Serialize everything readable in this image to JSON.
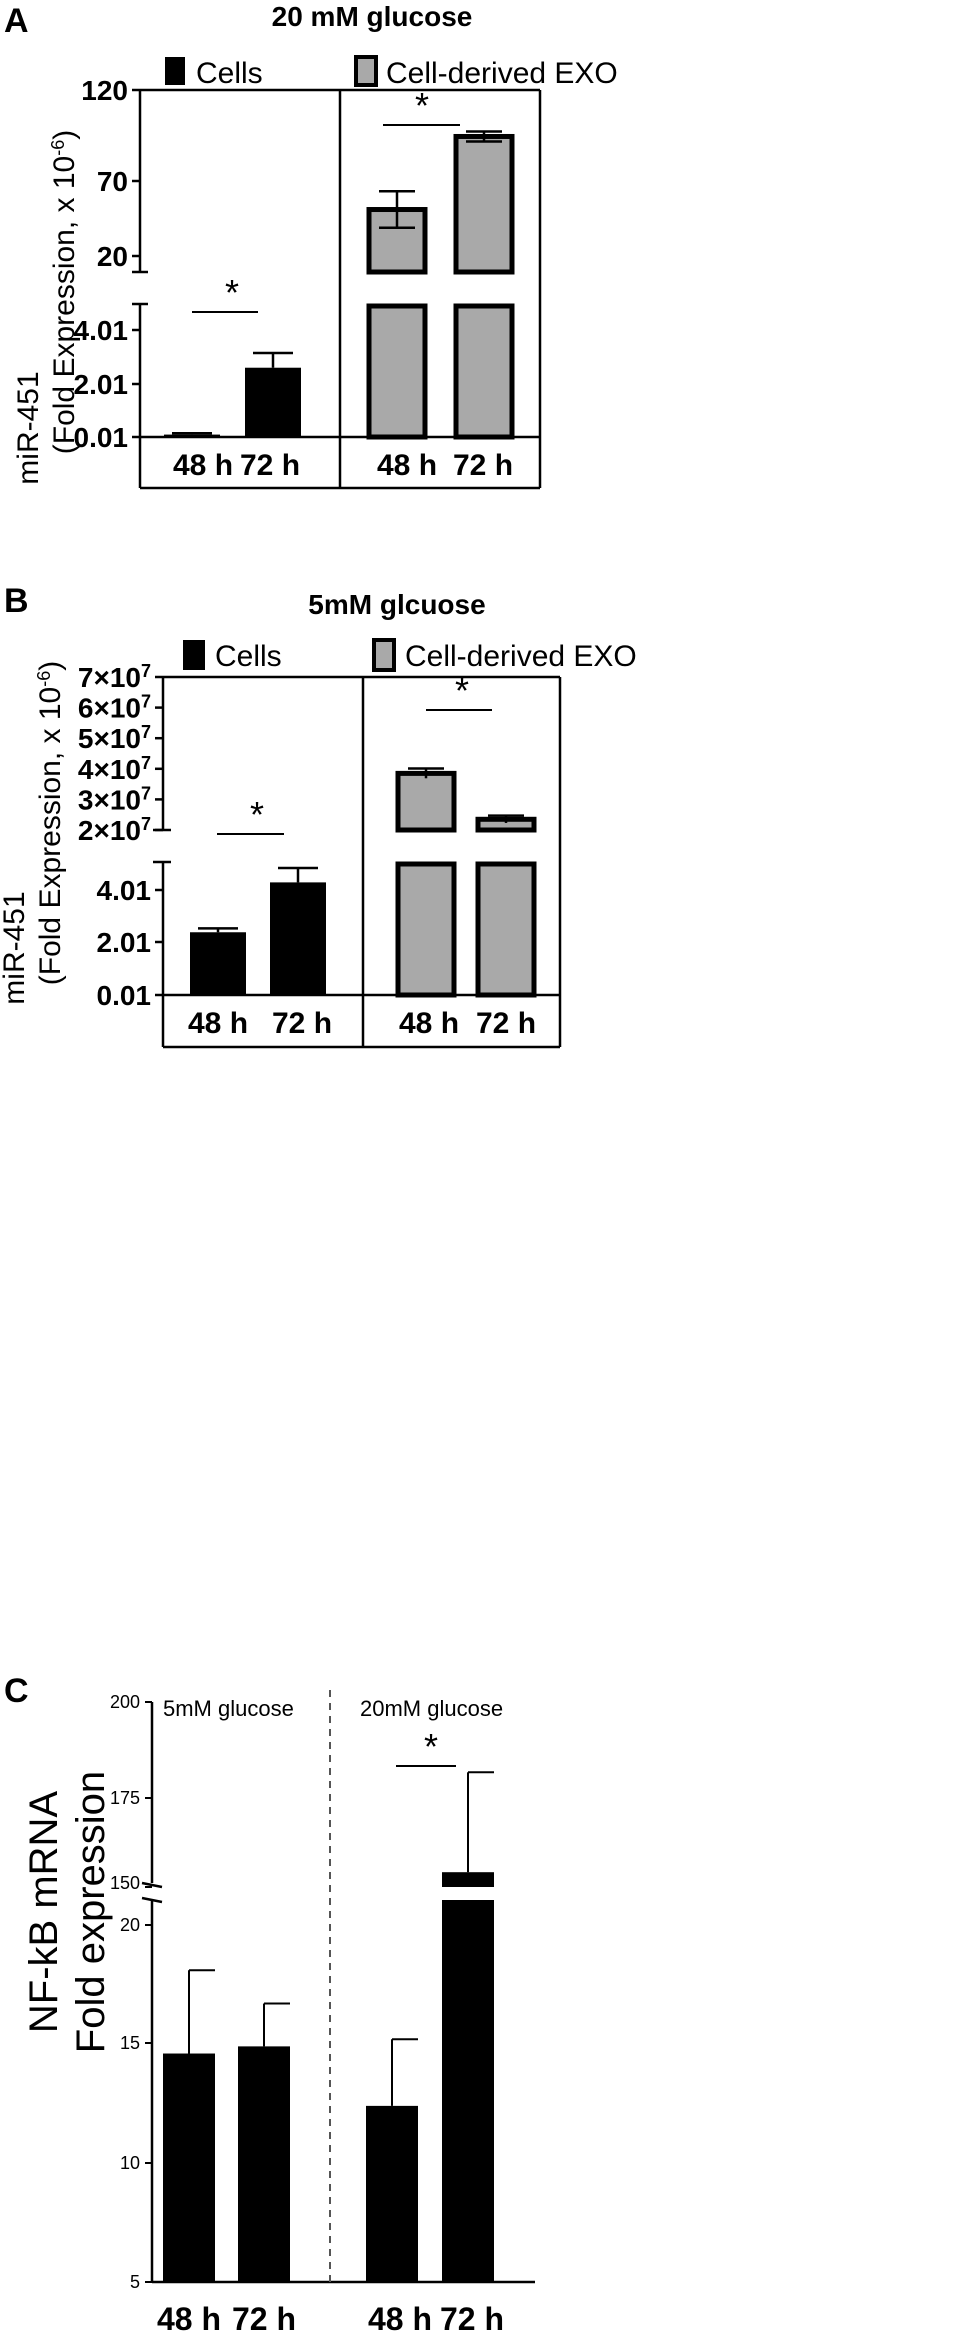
{
  "chart_data": [
    {
      "panel": "A",
      "type": "bar",
      "title": "20 mM glucose",
      "ylabel_line1": "miR-451",
      "ylabel_line2": "(Fold Expression, x 10",
      "ylabel_exp": "-6",
      "legend": [
        "Cells",
        "Cell-derived EXO"
      ],
      "categories": [
        "48 h",
        "72 h"
      ],
      "significance_marker": "*",
      "ytick_labels_lower": [
        "0.01",
        "2.01",
        "4.01"
      ],
      "ytick_labels_upper": [
        "20",
        "70",
        "120"
      ],
      "ylim_lower": [
        0.01,
        5.0
      ],
      "ylim_upper": [
        17,
        120
      ],
      "groups": [
        {
          "name": "Cells",
          "color": "#000000",
          "values": [
            0.1,
            2.6
          ],
          "errors": [
            0.05,
            0.55
          ]
        },
        {
          "name": "Cell-derived EXO",
          "color": "#a9a9a9",
          "values": [
            48,
            92
          ],
          "errors": [
            11,
            3
          ]
        }
      ]
    },
    {
      "panel": "B",
      "type": "bar",
      "title": "5mM glcuose",
      "ylabel_line1": "miR-451",
      "ylabel_line2": "(Fold Expression, x 10",
      "ylabel_exp": "-6",
      "legend": [
        "Cells",
        "Cell-derived EXO"
      ],
      "categories": [
        "48 h",
        "72 h"
      ],
      "significance_marker": "*",
      "ytick_labels_lower": [
        "0.01",
        "2.01",
        "4.01"
      ],
      "ytick_labels_upper": [
        "2×10",
        "3×10",
        "4×10",
        "5×10",
        "6×10",
        "7×10"
      ],
      "ytick_exp": "7",
      "ylim_lower": [
        0.01,
        5.0
      ],
      "ylim_upper": [
        20000000,
        70000000
      ],
      "groups": [
        {
          "name": "Cells",
          "color": "#000000",
          "values": [
            2.4,
            4.3
          ],
          "errors": [
            0.15,
            0.55
          ]
        },
        {
          "name": "Cell-derived EXO",
          "color": "#a9a9a9",
          "values": [
            38500000,
            23500000
          ],
          "errors": [
            1600000,
            1200000
          ]
        }
      ]
    },
    {
      "panel": "C",
      "type": "bar",
      "ylabel_line1": "NF-kB mRNA",
      "ylabel_line2": "Fold expression",
      "groups_titles": [
        "5mM glucose",
        "20mM glucose"
      ],
      "x_labels": [
        "48 h",
        "72 h",
        "48 h",
        "72 h"
      ],
      "significance_marker": "*",
      "ytick_labels_lower": [
        "5",
        "10",
        "15",
        "20"
      ],
      "ytick_labels_upper": [
        "150",
        "175",
        "200"
      ],
      "ylim_lower": [
        5,
        20
      ],
      "ylim_upper": [
        150,
        200
      ],
      "color": "#000000",
      "values": [
        14.6,
        14.9,
        12.4,
        154
      ],
      "errors": [
        3.5,
        1.8,
        2.8,
        27
      ]
    }
  ]
}
